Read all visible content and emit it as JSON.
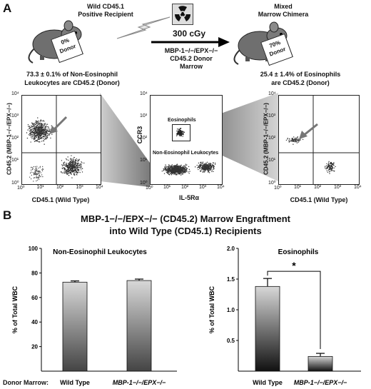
{
  "panel_a": {
    "letter": "A",
    "recipient_label_1": "Wild CD45.1",
    "recipient_label_2": "Positive Recipient",
    "recipient_card": "0% Donor",
    "irradiation": "300 cGy",
    "donor_line_1": "MBP-1−/−/EPX−/−",
    "donor_line_2": "CD45.2 Donor",
    "donor_line_3": "Marrow",
    "chimera_label_1": "Mixed",
    "chimera_label_2": "Marrow Chimera",
    "chimera_card": "70% Donor",
    "left_stat_1": "73.3 ± 0.1% of Non-Eosinophil",
    "left_stat_2": "Leukocytes are CD45.2 (Donor)",
    "right_stat_1": "25.4 ± 1.4% of Eosinophils",
    "right_stat_2": "are CD45.2 (Donor)",
    "left_plot": {
      "ylabel": "CD45.2 (MBP-1−/−/EPX−/−)",
      "xlabel": "CD45.1 (Wild Type)"
    },
    "middle_plot": {
      "ylabel": "CCR3",
      "xlabel": "IL-5Rα",
      "gate_eos": "Eosinophils",
      "gate_non": "Non-Eosinophil Leukocytes"
    },
    "right_plot": {
      "ylabel": "CD45.2 (MBP-1−/−/EPX−/−)",
      "xlabel": "CD45.1 (Wild Type)"
    },
    "ticks": [
      "10⁰",
      "10¹",
      "10²",
      "10³",
      "10⁴"
    ]
  },
  "panel_b": {
    "letter": "B",
    "title_1": "MBP-1−/−/EPX−/− (CD45.2)  Marrow Engraftment",
    "title_2": "into Wild Type (CD45.1) Recipients",
    "donor_marrow_label": "Donor Marrow:",
    "significance": "*"
  },
  "chart_data": [
    {
      "type": "bar",
      "title": "Non-Eosinophil Leukocytes",
      "ylabel": "% of Total WBC",
      "categories": [
        "Wild Type",
        "MBP-1−/−/EPX−/−"
      ],
      "values": [
        72.5,
        73.8
      ],
      "errors": [
        1.0,
        1.2
      ],
      "ylim": [
        0,
        100
      ],
      "yticks": [
        "20",
        "40",
        "60",
        "80",
        "100"
      ]
    },
    {
      "type": "bar",
      "title": "Eosinophils",
      "ylabel": "% of Total WBC",
      "categories": [
        "Wild Type",
        "MBP-1−/−/EPX−/−"
      ],
      "values": [
        1.38,
        0.24
      ],
      "errors": [
        0.13,
        0.05
      ],
      "ylim": [
        0,
        2.0
      ],
      "yticks": [
        "0.5",
        "1.0",
        "1.5",
        "2.0"
      ]
    }
  ]
}
